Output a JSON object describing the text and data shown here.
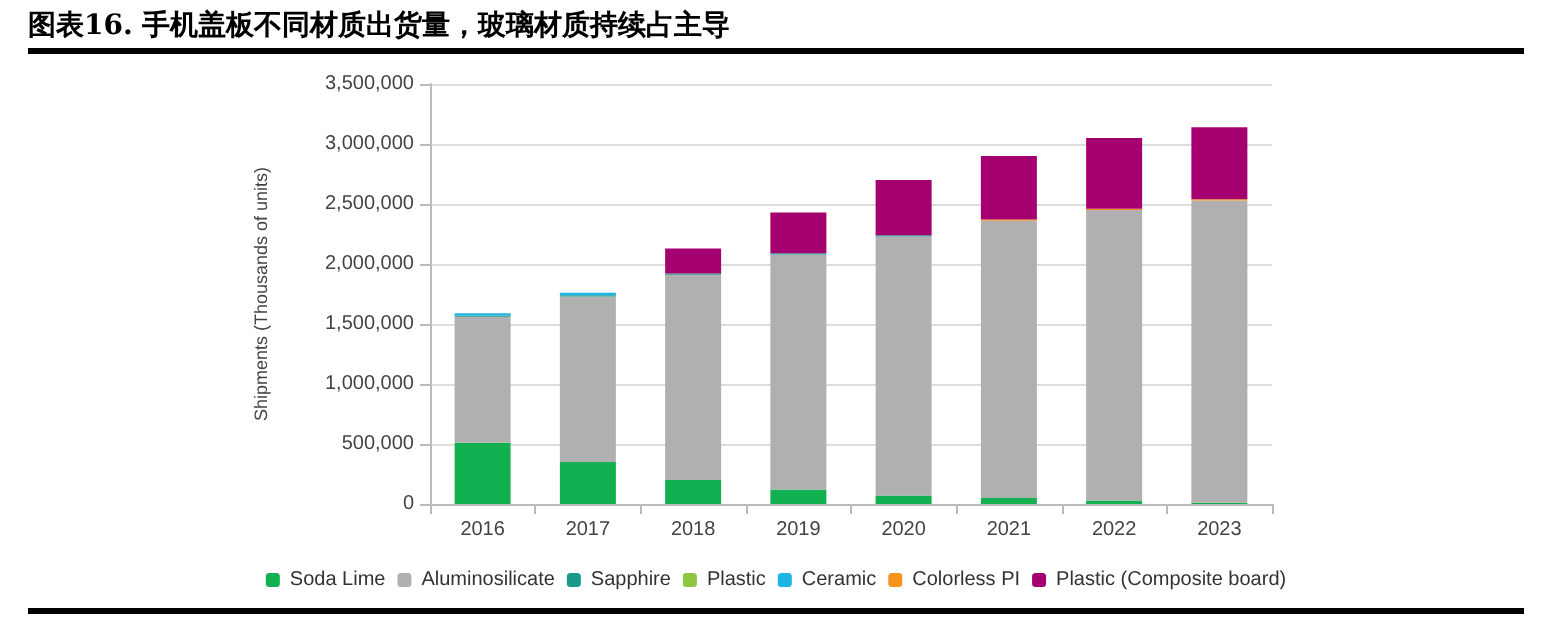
{
  "chart_data": {
    "type": "bar",
    "title": "图表16.  手机盖板不同材质出货量，玻璃材质持续占主导",
    "ylabel": "Shipments (Thousands of units)",
    "categories": [
      "2016",
      "2017",
      "2018",
      "2019",
      "2020",
      "2021",
      "2022",
      "2023"
    ],
    "stacked": true,
    "grid": "y",
    "legend": "bottom",
    "ylim": [
      0,
      3500000
    ],
    "yticks": [
      0,
      {
        "value": 500000,
        "label": "500,000"
      },
      {
        "value": 1000000,
        "label": "1,000,000"
      },
      {
        "value": 1500000,
        "label": "1,500,000"
      },
      {
        "value": 2000000,
        "label": "2,000,000"
      },
      {
        "value": 2500000,
        "label": "2,500,000"
      },
      {
        "value": 3000000,
        "label": "3,000,000"
      },
      {
        "value": 3500000,
        "label": "3,500,000"
      }
    ],
    "series": [
      {
        "name": "Soda Lime",
        "color": "#12b050",
        "values": [
          510000,
          350000,
          200000,
          120000,
          70000,
          50000,
          30000,
          10000
        ]
      },
      {
        "name": "Aluminosilicate",
        "color": "#b0b0b0",
        "values": [
          1050000,
          1380000,
          1710000,
          1960000,
          2160000,
          2310000,
          2420000,
          2520000
        ]
      },
      {
        "name": "Sapphire",
        "color": "#1a9a8a",
        "values": [
          10000,
          10000,
          10000,
          10000,
          10000,
          0,
          0,
          0
        ]
      },
      {
        "name": "Plastic",
        "color": "#8dc63f",
        "values": [
          0,
          0,
          0,
          0,
          0,
          0,
          0,
          0
        ]
      },
      {
        "name": "Ceramic",
        "color": "#1eb4e6",
        "values": [
          20000,
          20000,
          0,
          0,
          0,
          0,
          0,
          0
        ]
      },
      {
        "name": "Colorless PI",
        "color": "#f7941d",
        "values": [
          0,
          0,
          0,
          0,
          0,
          10000,
          10000,
          10000
        ]
      },
      {
        "name": "Plastic (Composite board)",
        "color": "#a50070",
        "values": [
          0,
          0,
          210000,
          340000,
          460000,
          530000,
          590000,
          600000
        ]
      }
    ]
  }
}
